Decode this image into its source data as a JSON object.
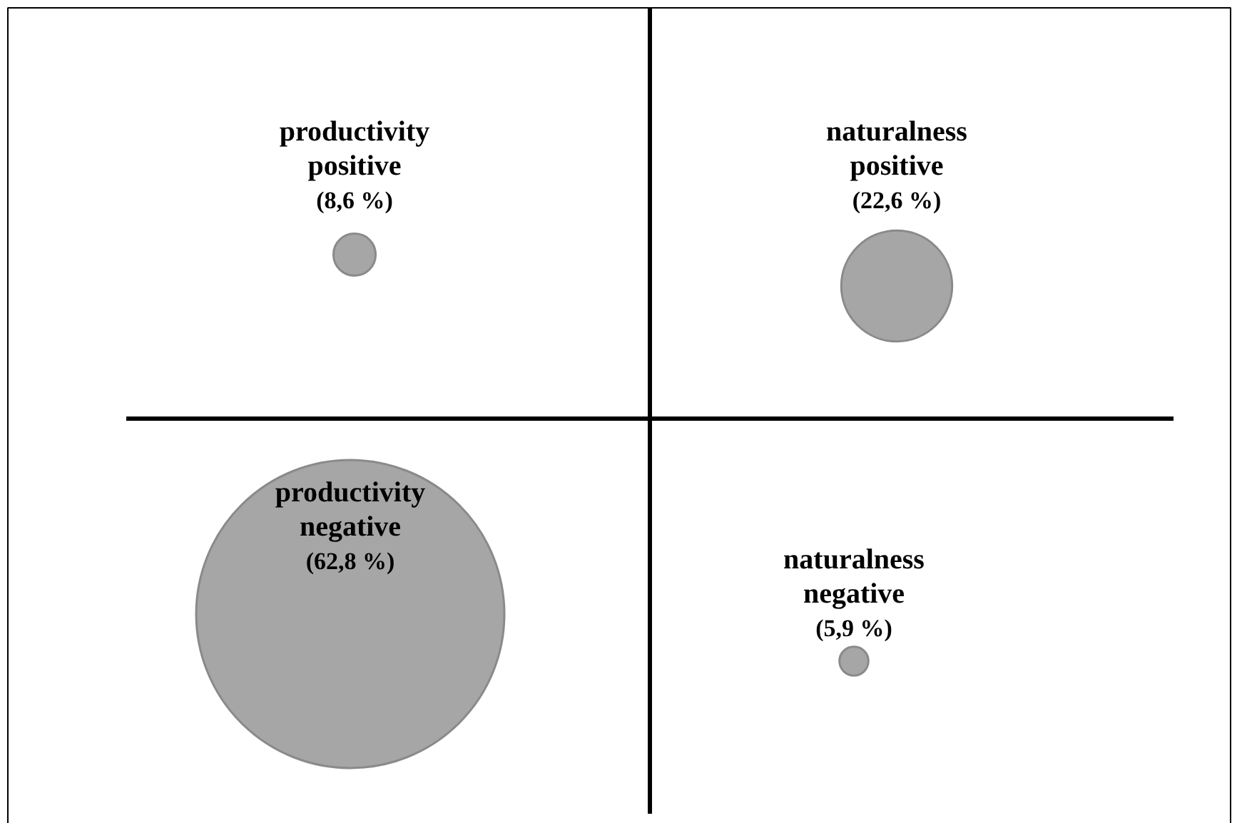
{
  "chart_data": {
    "type": "other",
    "categories": [
      "productivity\npositive",
      "naturalness\npositive",
      "productivity\nnegative",
      "naturalness\nnegative"
    ],
    "values": [
      8.6,
      22.6,
      62.8,
      5.9
    ],
    "value_labels": [
      "(8,6 %)",
      "(22,6 %)",
      "(62,8 %)",
      "(5,9 %)"
    ],
    "color": "#a6a6a6"
  }
}
